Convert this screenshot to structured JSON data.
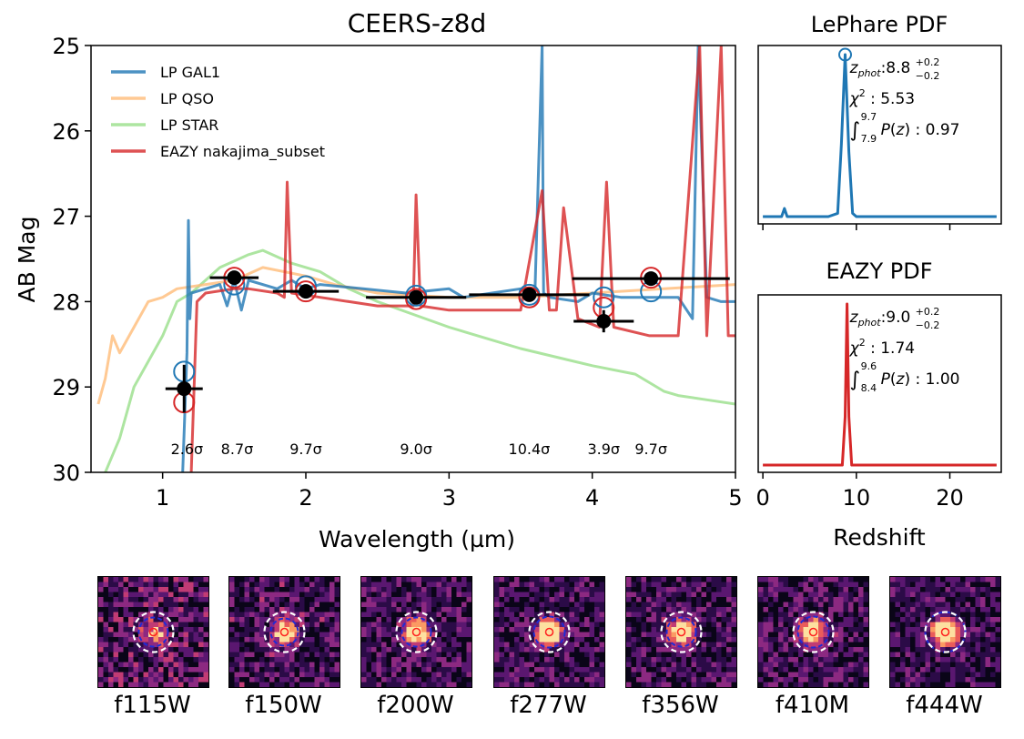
{
  "chart_data": [
    {
      "type": "line",
      "title": "CEERS-z8d",
      "xlabel": "Wavelength (µm)",
      "ylabel": "AB Mag",
      "xlim": [
        0.5,
        5.0
      ],
      "ylim": [
        30,
        25
      ],
      "y_inverted": true,
      "x_ticks": [
        "1",
        "2",
        "3",
        "4",
        "5"
      ],
      "y_ticks": [
        "25",
        "26",
        "27",
        "28",
        "29",
        "30"
      ],
      "legend": [
        "LP GAL1",
        "LP QSO",
        "LP STAR",
        "EAZY nakajima_subset"
      ],
      "legend_position": "upper-left",
      "series": [
        {
          "name": "LP GAL1",
          "color": "#1f77b4",
          "x": [
            1.14,
            1.17,
            1.18,
            1.19,
            1.2,
            1.3,
            1.4,
            1.45,
            1.5,
            1.55,
            1.6,
            1.8,
            1.9,
            2.0,
            2.1,
            2.4,
            2.7,
            3.0,
            3.1,
            3.3,
            3.5,
            3.6,
            3.65,
            3.66,
            3.7,
            3.9,
            4.0,
            4.2,
            4.4,
            4.6,
            4.7,
            4.74,
            4.8,
            4.9,
            5.0
          ],
          "y": [
            30,
            28.6,
            27.05,
            28.2,
            27.9,
            27.85,
            27.8,
            28.05,
            27.75,
            28.1,
            27.75,
            27.85,
            27.75,
            27.85,
            27.8,
            27.85,
            27.9,
            27.85,
            27.95,
            27.9,
            27.85,
            27.9,
            25.0,
            27.9,
            27.95,
            28.0,
            27.9,
            27.95,
            27.95,
            27.95,
            28.2,
            25.0,
            27.95,
            28.0,
            28.0
          ]
        },
        {
          "name": "LP QSO",
          "color": "#ffbb78",
          "x": [
            0.55,
            0.6,
            0.65,
            0.7,
            0.8,
            0.9,
            1.0,
            1.1,
            1.3,
            1.5,
            1.7,
            2.0,
            2.2,
            2.5,
            3.0,
            3.5,
            4.0,
            4.5,
            5.0
          ],
          "y": [
            29.2,
            28.9,
            28.4,
            28.6,
            28.3,
            28.0,
            27.95,
            27.85,
            27.8,
            27.75,
            27.6,
            27.7,
            27.8,
            27.9,
            27.95,
            27.95,
            27.9,
            27.85,
            27.8
          ]
        },
        {
          "name": "LP STAR",
          "color": "#98df8a",
          "x": [
            0.6,
            0.7,
            0.8,
            0.9,
            1.0,
            1.1,
            1.2,
            1.4,
            1.6,
            1.7,
            1.9,
            2.1,
            2.3,
            2.5,
            3.0,
            3.5,
            4.0,
            4.3,
            4.5,
            4.6,
            4.8,
            5.0
          ],
          "y": [
            30,
            29.6,
            29.0,
            28.7,
            28.4,
            28.0,
            27.9,
            27.6,
            27.45,
            27.4,
            27.55,
            27.65,
            27.85,
            28.0,
            28.3,
            28.55,
            28.75,
            28.85,
            29.05,
            29.1,
            29.15,
            29.2
          ]
        },
        {
          "name": "EAZY nakajima_subset",
          "color": "#d62728",
          "x": [
            1.2,
            1.24,
            1.3,
            1.5,
            1.6,
            1.8,
            1.85,
            1.87,
            1.9,
            2.1,
            2.3,
            2.5,
            2.75,
            2.77,
            2.8,
            3.0,
            3.5,
            3.65,
            3.7,
            3.75,
            3.8,
            3.9,
            4.05,
            4.1,
            4.15,
            4.4,
            4.6,
            4.75,
            4.8,
            4.9,
            4.95,
            5.0
          ],
          "y": [
            30,
            28.0,
            27.9,
            27.85,
            27.85,
            27.9,
            27.95,
            26.6,
            27.9,
            27.95,
            28.0,
            28.05,
            28.05,
            26.75,
            28.05,
            28.1,
            28.1,
            26.7,
            28.1,
            28.1,
            26.9,
            28.2,
            28.3,
            26.6,
            28.3,
            28.4,
            28.4,
            25.0,
            28.4,
            25.0,
            28.4,
            28.4
          ]
        }
      ],
      "observed": {
        "x": [
          1.15,
          1.5,
          2.0,
          2.77,
          3.56,
          4.08,
          4.41
        ],
        "y": [
          29.02,
          27.72,
          27.88,
          27.95,
          27.92,
          28.23,
          27.73
        ],
        "x_err": [
          0.13,
          0.17,
          0.23,
          0.35,
          0.42,
          0.21,
          0.55
        ],
        "y_err": [
          0.28,
          0.08,
          0.07,
          0.07,
          0.06,
          0.13,
          0.06
        ]
      },
      "model_gal1": {
        "x": [
          1.15,
          1.5,
          2.0,
          2.77,
          3.56,
          4.08,
          4.41
        ],
        "y": [
          28.82,
          27.8,
          27.82,
          27.93,
          27.92,
          27.95,
          27.88
        ]
      },
      "model_eazy": {
        "x": [
          1.15,
          1.5,
          2.0,
          2.77,
          3.56,
          4.08,
          4.41
        ],
        "y": [
          29.18,
          27.72,
          27.88,
          27.97,
          27.95,
          28.07,
          27.72
        ]
      },
      "snr_labels": [
        {
          "x": 1.17,
          "text": "2.6σ"
        },
        {
          "x": 1.52,
          "text": "8.7σ"
        },
        {
          "x": 2.0,
          "text": "9.7σ"
        },
        {
          "x": 2.77,
          "text": "9.0σ"
        },
        {
          "x": 3.56,
          "text": "10.4σ"
        },
        {
          "x": 4.08,
          "text": "3.9σ"
        },
        {
          "x": 4.41,
          "text": "9.7σ"
        }
      ]
    },
    {
      "type": "line",
      "title": "LePhare PDF",
      "xlim": [
        -0.5,
        25.5
      ],
      "color": "#1f77b4",
      "x": [
        0,
        1,
        2,
        2.3,
        2.6,
        3,
        5,
        7,
        8,
        8.4,
        8.8,
        9.2,
        9.6,
        10,
        11,
        15,
        20,
        25
      ],
      "y": [
        0,
        0,
        0,
        0.05,
        0,
        0,
        0,
        0,
        0.02,
        0.45,
        1.0,
        0.4,
        0.02,
        0,
        0,
        0,
        0,
        0
      ],
      "peak_marker": {
        "x": 8.8,
        "y": 1.0
      },
      "annotations": {
        "zphot": "8.8",
        "zphot_up": "+0.2",
        "zphot_lo": "−0.2",
        "chi2": "5.53",
        "int_lo": "7.9",
        "int_hi": "9.7",
        "int_val": "0.97"
      }
    },
    {
      "type": "line",
      "title": "EAZY PDF",
      "xlabel": "Redshift",
      "xlim": [
        -0.5,
        25.5
      ],
      "x_ticks": [
        "0",
        "10",
        "20"
      ],
      "color": "#d62728",
      "x": [
        0,
        5,
        8.5,
        8.8,
        9.0,
        9.2,
        9.5,
        12,
        25
      ],
      "y": [
        0,
        0,
        0,
        0.3,
        1.0,
        0.3,
        0,
        0,
        0
      ],
      "annotations": {
        "zphot": "9.0",
        "zphot_up": "+0.2",
        "zphot_lo": "−0.2",
        "chi2": "1.74",
        "int_lo": "8.4",
        "int_hi": "9.6",
        "int_val": "1.00"
      }
    }
  ],
  "cutouts": [
    {
      "label": "f115W",
      "seed": 3,
      "brightness": 0.35,
      "blue_r": 16
    },
    {
      "label": "f150W",
      "seed": 7,
      "brightness": 0.55,
      "blue_r": 15
    },
    {
      "label": "f200W",
      "seed": 11,
      "brightness": 0.7,
      "blue_r": 16
    },
    {
      "label": "f277W",
      "seed": 13,
      "brightness": 0.8,
      "blue_r": 17
    },
    {
      "label": "f356W",
      "seed": 17,
      "brightness": 0.75,
      "blue_r": 16
    },
    {
      "label": "f410M",
      "seed": 19,
      "brightness": 0.6,
      "blue_r": 17
    },
    {
      "label": "f444W",
      "seed": 23,
      "brightness": 0.85,
      "blue_r": 22
    }
  ]
}
